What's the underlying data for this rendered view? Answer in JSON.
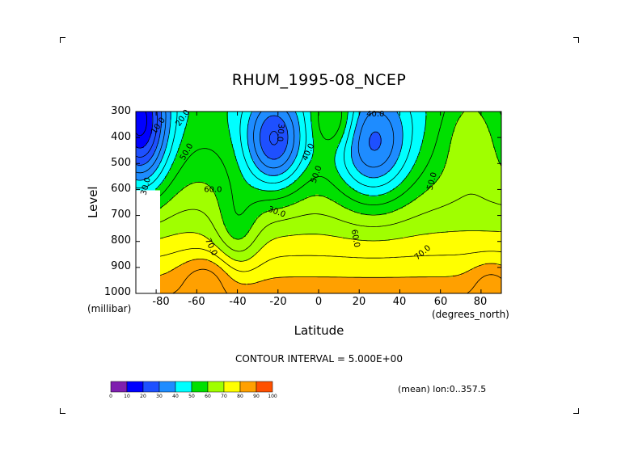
{
  "title": "RHUM_1995-08_NCEP",
  "chart_data": {
    "type": "contour",
    "title": "RHUM_1995-08_NCEP",
    "xlabel": "Latitude",
    "x_units": "(degrees_north)",
    "ylabel": "Level",
    "y_units": "(millibar)",
    "xlim": [
      -90,
      90
    ],
    "ylim": [
      1000,
      300
    ],
    "x_ticks": [
      -80,
      -60,
      -40,
      -20,
      0,
      20,
      40,
      60,
      80
    ],
    "y_ticks": [
      300,
      400,
      500,
      600,
      700,
      800,
      900,
      1000
    ],
    "x_tick_labels": [
      "-80",
      "-60",
      "-40",
      "-20",
      "0",
      "20",
      "40",
      "60",
      "80"
    ],
    "y_tick_labels": [
      "300",
      "400",
      "500",
      "600",
      "700",
      "800",
      "900",
      "1000"
    ],
    "contour_interval": 5,
    "contour_labels": [
      "20.0",
      "30.0",
      "40.0",
      "40.0",
      "50.0",
      "50.0",
      "50.0",
      "60.0",
      "60.0",
      "70.0",
      "70.0",
      "30.0",
      "30.0",
      "10.0"
    ],
    "colorbar_levels": [
      0,
      10,
      20,
      30,
      40,
      50,
      60,
      70,
      80,
      90,
      100
    ],
    "colorbar_labels": [
      "0",
      "10",
      "20",
      "30",
      "40",
      "50",
      "60",
      "70",
      "80",
      "90",
      "100"
    ],
    "colorbar_colors": [
      "#7f1faf",
      "#0000ff",
      "#1e50ff",
      "#1e8cff",
      "#00ffff",
      "#00e000",
      "#a0ff00",
      "#ffff00",
      "#ffa000",
      "#ff5000",
      "#ff0000"
    ],
    "grid": false
  },
  "footer": {
    "contour_interval_text": "CONTOUR INTERVAL = 5.000E+00",
    "mean_text": "(mean) lon:0..357.5"
  }
}
